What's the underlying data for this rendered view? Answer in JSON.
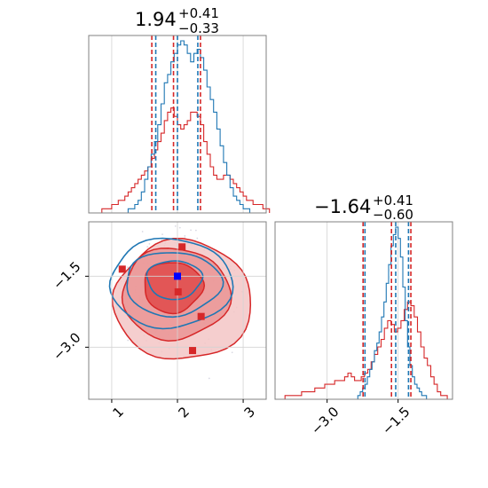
{
  "colors": {
    "blue": "#1f77b4",
    "red": "#d62728",
    "grid": "#d3d3d3",
    "axis": "#808080"
  },
  "chart_data": {
    "type": "corner",
    "parameters": [
      {
        "title": {
          "median": "1.94",
          "upper": "+0.41",
          "lower": "−0.33"
        },
        "range": [
          0.65,
          3.35
        ],
        "ticks": [
          1,
          2,
          3
        ],
        "tick_labels": [
          "1",
          "2",
          "3"
        ],
        "quantiles_blue": [
          1.67,
          2.0,
          2.31
        ],
        "quantiles_red": [
          1.61,
          1.94,
          2.35
        ],
        "hist_blue": {
          "x0": 1.2,
          "dx": 0.05,
          "counts": [
            0,
            1,
            1,
            2,
            3,
            5,
            8,
            11,
            14,
            17,
            21,
            26,
            31,
            33,
            36,
            38,
            40,
            41,
            40,
            38,
            36,
            38,
            39,
            37,
            34,
            30,
            27,
            24,
            20,
            16,
            12,
            9,
            6,
            4,
            3,
            2,
            1,
            1,
            0,
            0
          ]
        },
        "hist_red": {
          "x0": 0.7,
          "dx": 0.05,
          "counts": [
            0,
            0,
            0,
            1,
            1,
            1,
            2,
            2,
            3,
            3,
            4,
            5,
            6,
            7,
            8,
            9,
            10,
            11,
            13,
            15,
            17,
            19,
            22,
            24,
            25,
            23,
            21,
            20,
            21,
            22,
            24,
            24,
            23,
            21,
            17,
            14,
            11,
            9,
            8,
            8,
            9,
            9,
            8,
            7,
            6,
            5,
            4,
            3,
            3,
            2,
            2,
            2,
            1,
            1
          ]
        }
      },
      {
        "title": {
          "median": "−1.64",
          "upper": "+0.41",
          "lower": "−0.60"
        },
        "range": [
          -4.1,
          -0.35
        ],
        "ticks": [
          -3.0,
          -1.5
        ],
        "tick_labels": [
          "−3.0",
          "−1.5"
        ],
        "quantiles_blue": [
          -2.2,
          -1.55,
          -1.28
        ],
        "quantiles_red": [
          -2.24,
          -1.64,
          -1.23
        ],
        "hist_blue": {
          "x0": -2.45,
          "dx": 0.05,
          "counts": [
            0,
            0,
            1,
            2,
            3,
            4,
            6,
            8,
            10,
            13,
            15,
            18,
            22,
            26,
            31,
            36,
            41,
            44,
            46,
            43,
            38,
            30,
            21,
            14,
            9,
            6,
            4,
            3,
            2,
            1,
            1,
            0
          ]
        },
        "hist_red": {
          "x0": -4.1,
          "dx": 0.07,
          "counts": [
            0,
            0,
            0,
            1,
            1,
            1,
            1,
            1,
            2,
            2,
            2,
            2,
            3,
            3,
            3,
            4,
            4,
            4,
            5,
            5,
            5,
            6,
            7,
            6,
            5,
            5,
            6,
            7,
            8,
            10,
            12,
            14,
            16,
            19,
            21,
            20,
            18,
            19,
            21,
            24,
            26,
            25,
            22,
            18,
            14,
            11,
            9,
            6,
            4,
            2,
            1,
            1,
            0
          ]
        }
      }
    ],
    "scatter_2d": {
      "x_range": [
        0.65,
        3.35
      ],
      "y_range": [
        -4.1,
        -0.35
      ],
      "truth": {
        "x": 2.0,
        "y": -1.5,
        "color": "blue"
      },
      "red_squares": [
        {
          "x": 2.07,
          "y": -0.88
        },
        {
          "x": 1.16,
          "y": -1.35
        },
        {
          "x": 2.01,
          "y": -1.83
        },
        {
          "x": 2.36,
          "y": -2.35
        },
        {
          "x": 2.23,
          "y": -3.07
        }
      ],
      "contours_blue": [
        {
          "cx": 1.95,
          "cy": -1.55,
          "rx": 0.42,
          "ry": 0.38
        },
        {
          "cx": 1.93,
          "cy": -1.62,
          "rx": 0.73,
          "ry": 0.63
        },
        {
          "cx": 1.9,
          "cy": -1.6,
          "rx": 0.93,
          "ry": 0.88
        }
      ],
      "contours_red": [
        {
          "cx": 1.93,
          "cy": -1.7,
          "rx": 0.45,
          "ry": 0.5
        },
        {
          "cx": 1.97,
          "cy": -1.82,
          "rx": 0.82,
          "ry": 0.9
        },
        {
          "cx": 2.08,
          "cy": -1.95,
          "rx": 1.05,
          "ry": 1.18
        }
      ]
    },
    "grid": true
  }
}
